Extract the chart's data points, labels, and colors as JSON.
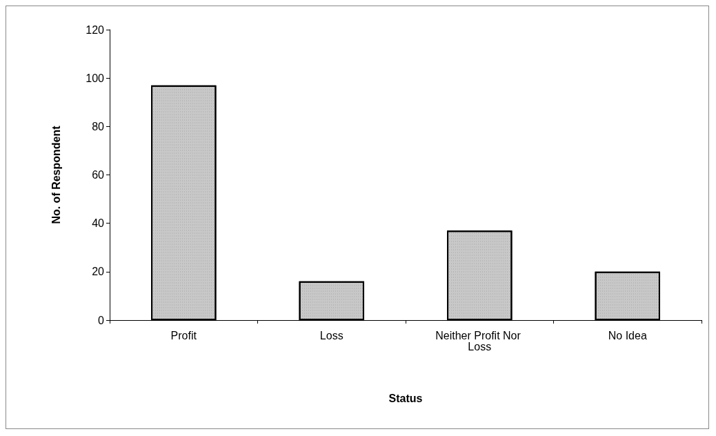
{
  "chart_data": {
    "type": "bar",
    "xlabel": "Status",
    "ylabel": "No. of Respondent",
    "categories": [
      "Profit",
      "Loss",
      "Neither Profit Nor Loss",
      "No Idea"
    ],
    "values": [
      97,
      16,
      37,
      20
    ],
    "color": "#c8c8c8",
    "ylim": [
      0,
      120
    ],
    "yticks": [
      0,
      20,
      40,
      60,
      80,
      100,
      120
    ],
    "grid": false
  }
}
